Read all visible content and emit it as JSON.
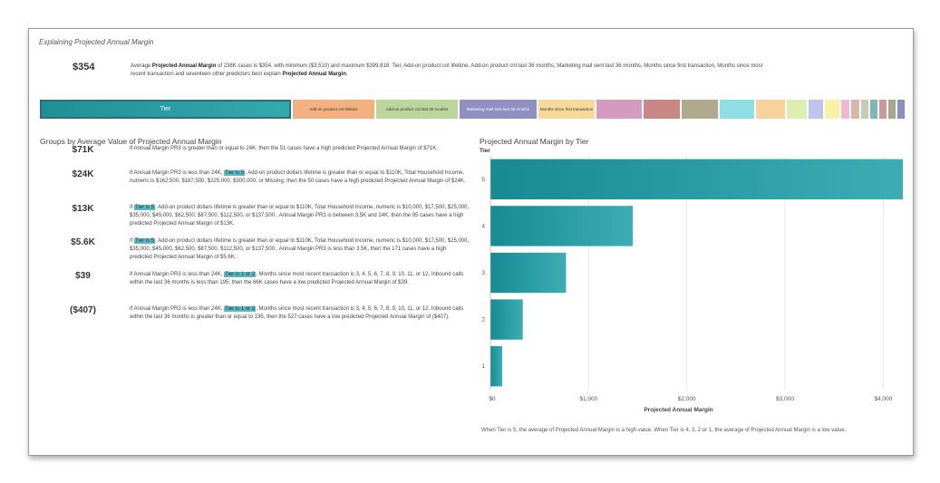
{
  "title": "Explaining Projected Annual Margin",
  "summary": {
    "value": "$354",
    "text_parts": [
      "Average ",
      "Projected Annual Margin",
      " of 238K cases is $354, with minimum ($3,510) and maximum $399,818. Tier, Add-on product cnt lifetime, Add-on product cnt last 36 months, Marketing mail sent last 36 months, Months since first transaction, Months since most recent transaction and seventeen other predictors best explain ",
      "Projected Annual Margin",
      "."
    ]
  },
  "predictor_strip": [
    {
      "label": "Tier",
      "color": "#24989f"
    },
    {
      "label": "Add-on product cnt lifetime",
      "color": "#f3b182"
    },
    {
      "label": "Add-on product cnt last 36 months",
      "color": "#bcd59a"
    },
    {
      "label": "Marketing mail sent last 36 months",
      "color": "#8f8fc2"
    },
    {
      "label": "Months since first transaction",
      "color": "#f7d99a"
    },
    {
      "label": "",
      "color": "#d39bc0"
    },
    {
      "label": "",
      "color": "#c98886"
    },
    {
      "label": "",
      "color": "#b1a98b"
    },
    {
      "label": "",
      "color": "#8ddfe4"
    },
    {
      "label": "",
      "color": "#f7d39b"
    },
    {
      "label": "",
      "color": "#dcefb1"
    },
    {
      "label": "",
      "color": "#bfc4ed"
    },
    {
      "label": "",
      "color": "#f9f1a6"
    },
    {
      "label": "",
      "color": "#f2b7d3"
    },
    {
      "label": "",
      "color": "#d9b7a7"
    },
    {
      "label": "",
      "color": "#c7cdb4"
    },
    {
      "label": "",
      "color": "#7fb7b4"
    },
    {
      "label": "",
      "color": "#c89a9a"
    },
    {
      "label": "",
      "color": "#a3a98a"
    },
    {
      "label": "",
      "color": "#8a8fc0"
    }
  ],
  "groups": {
    "title": "Groups by Average Value of Projected Annual Margin",
    "rows": [
      {
        "value": "$71K",
        "pre": "If Annual Margin PR3 is greater than or equal to 24K, then the 51 cases have a high predicted Projected Annual Margin of $71K.",
        "highlight": "",
        "post": ""
      },
      {
        "value": "$24K",
        "pre": "If Annual Margin PR3 is less than 24K, ",
        "highlight": "Tier is 5",
        "post": ", Add-on product dollars lifetime is greater than or equal to $110K, Total Household Income, numeric is $162,500, $187,500, $225,000, $300,000, or Missing, then the 50 cases have a high predicted Projected Annual Margin of $24K."
      },
      {
        "value": "$13K",
        "pre": "If ",
        "highlight": "Tier is 5",
        "post": ", Add-on product dollars lifetime is greater than or equal to $110K, Total Household Income, numeric is $10,000, $17,500, $25,000, $35,000, $45,000, $62,500, $87,500, $112,500, or $137,500 , Annual Margin PR3 is between 3.5K and 24K, then the 95 cases have a high predicted Projected Annual Margin of $13K."
      },
      {
        "value": "$5.6K",
        "pre": "If ",
        "highlight": "Tier is 5",
        "post": ", Add-on product dollars lifetime is greater than or equal to $110K, Total Household Income, numeric is $10,000, $17,500, $25,000, $35,000, $45,000, $62,500, $87,500, $112,500, or $137,500 , Annual Margin PR3 is less than 3.5K, then the 171 cases have a high predicted Projected Annual Margin of $5.6K."
      },
      {
        "value": "$39",
        "pre": "If Annual Margin PR3 is less than 24K, ",
        "highlight": "Tier is 1 or 2",
        "post": ", Months since most recent transaction is 3, 4, 5, 6, 7, 8, 9, 10, 11, or 12, Inbound calls within the last 36 months is less than 195, then the 66K cases have a low predicted Projected Annual Margin of $39."
      },
      {
        "value": "($407)",
        "pre": "If Annual Margin PR3 is less than 24K, ",
        "highlight": "Tier is 1 or 2",
        "post": ", Months since most recent transaction is 3, 4, 5, 6, 7, 8, 9, 10, 11, or 12, Inbound calls within the last 36 months is greater than or equal to 195, then the 527 cases have a low predicted Projected Annual Margin of ($407)."
      }
    ]
  },
  "chart_data": {
    "type": "bar",
    "orientation": "horizontal",
    "title": "Projected Annual Margin by Tier",
    "ylabel": "Tier",
    "xlabel": "Projected Annual Margin",
    "categories": [
      "5",
      "4",
      "3",
      "2",
      "1"
    ],
    "values": [
      4200,
      1450,
      770,
      330,
      120
    ],
    "xlim": [
      0,
      4200
    ],
    "xticks": [
      0,
      1000,
      2000,
      3000,
      4000
    ],
    "xtick_labels": [
      "$0",
      "$1,000",
      "$2,000",
      "$3,000",
      "$4,000"
    ],
    "grid": true,
    "bar_color": "#24989f"
  },
  "footer": "When Tier is 5, the average of Projected Annual Margin is a high value. When Tier is 4, 3, 2 or 1, the average of Projected Annual Margin is a low value."
}
